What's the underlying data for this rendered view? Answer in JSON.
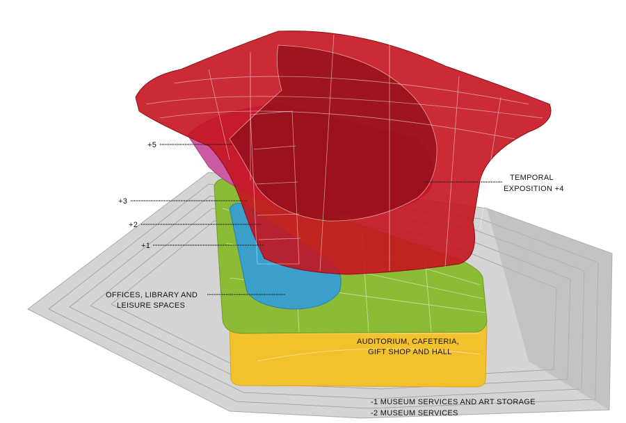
{
  "labels": [
    {
      "lines": [
        "+5"
      ]
    },
    {
      "lines": [
        "TEMPORAL",
        "EXPOSITION +4"
      ]
    },
    {
      "lines": [
        "+3"
      ]
    },
    {
      "lines": [
        "+2"
      ]
    },
    {
      "lines": [
        "+1"
      ]
    },
    {
      "lines": [
        "OFFICES, LIBRARY AND",
        "LEISURE SPACES"
      ]
    },
    {
      "lines": [
        "AUDITORIUM, CAFETERIA,",
        "GIFT SHOP AND HALL"
      ]
    },
    {
      "lines": [
        "-1 MUSEUM SERVICES AND ART STORAGE",
        "-2 MUSEUM SERVICES"
      ]
    }
  ]
}
